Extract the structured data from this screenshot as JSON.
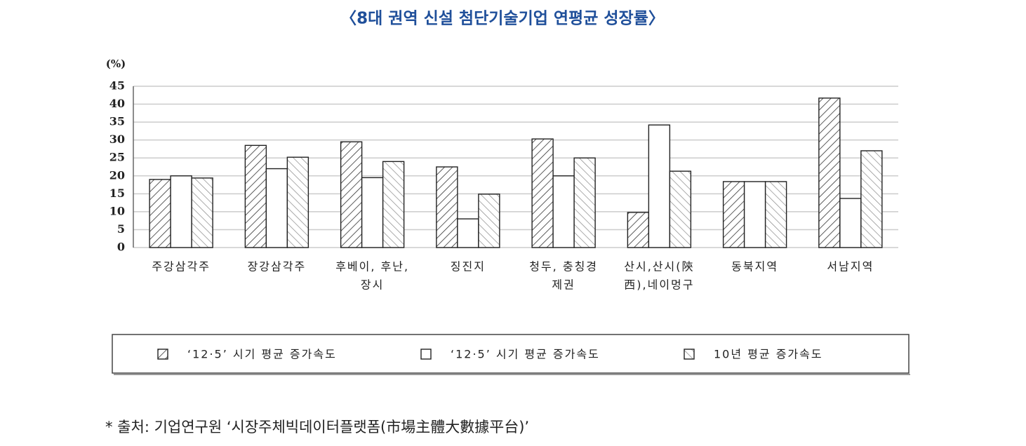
{
  "chart_data": {
    "type": "bar",
    "title": "〈8대 권역 신설 첨단기술기업 연평균 성장률〉",
    "y_unit": "(%)",
    "categories": [
      [
        "주강삼각주"
      ],
      [
        "장강삼각주"
      ],
      [
        "후베이, 후난,",
        "장시"
      ],
      [
        "징진지"
      ],
      [
        "청두, 충칭경",
        "제권"
      ],
      [
        "산시,산시(陝",
        "西),네이멍구"
      ],
      [
        "동북지역"
      ],
      [
        "서남지역"
      ]
    ],
    "series": [
      {
        "name": "‘12·5’ 시기 평균 증가속도",
        "values": [
          19,
          28.5,
          29.5,
          22.5,
          30.3,
          9.8,
          18.4,
          41.7
        ]
      },
      {
        "name": "‘12·5’ 시기 평균 증가속도",
        "values": [
          20,
          22,
          19.5,
          8,
          20,
          34.2,
          18.4,
          13.7
        ]
      },
      {
        "name": "10년 평균 증가속도",
        "values": [
          19.4,
          25.2,
          24,
          14.9,
          25,
          21.3,
          18.4,
          27
        ]
      }
    ],
    "ylim": [
      0,
      45
    ],
    "yticks": [
      0,
      5,
      10,
      15,
      20,
      25,
      30,
      35,
      40,
      45
    ],
    "grid": true,
    "source": "*  출처: 기업연구원 ‘시장주체빅데이터플랫폼(市場主體大數據平台)’"
  }
}
